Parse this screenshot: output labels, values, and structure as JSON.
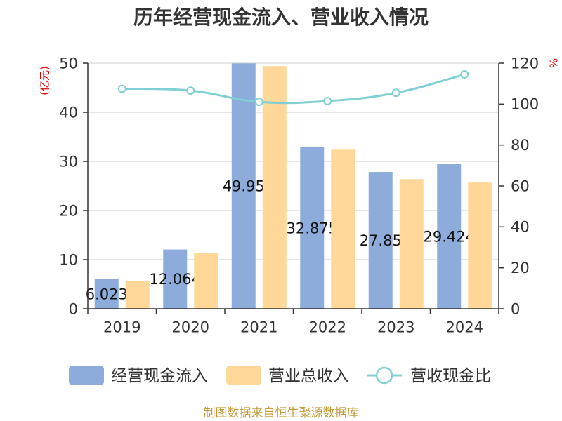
{
  "chart_data": {
    "type": "bar",
    "title": "历年经营现金流入、营业收入情况",
    "categories": [
      "2019",
      "2020",
      "2021",
      "2022",
      "2023",
      "2024"
    ],
    "y_left": {
      "label": "(亿元)",
      "range": [
        0,
        50
      ],
      "ticks": [
        0,
        10,
        20,
        30,
        40,
        50
      ]
    },
    "y_right": {
      "label": "%",
      "range": [
        0,
        120
      ],
      "ticks": [
        0,
        20,
        40,
        60,
        80,
        100,
        120
      ]
    },
    "series": [
      {
        "name": "经营现金流入",
        "type": "bar",
        "axis": "left",
        "color": "#8eacdb",
        "show_labels": true,
        "values": [
          6.023,
          12.064,
          49.95,
          32.875,
          27.85,
          29.424
        ]
      },
      {
        "name": "营业总收入",
        "type": "bar",
        "axis": "left",
        "color": "#ffd899",
        "show_labels": false,
        "values": [
          5.6,
          11.3,
          49.4,
          32.4,
          26.4,
          25.7
        ]
      },
      {
        "name": "营收现金比",
        "type": "line",
        "axis": "right",
        "color": "#80cfd4",
        "smooth": true,
        "values": [
          107.5,
          106.6,
          101.1,
          101.5,
          105.5,
          114.5
        ]
      }
    ],
    "grid": true,
    "legend_position": "bottom"
  },
  "source_note": "制图数据来自恒生聚源数据库"
}
